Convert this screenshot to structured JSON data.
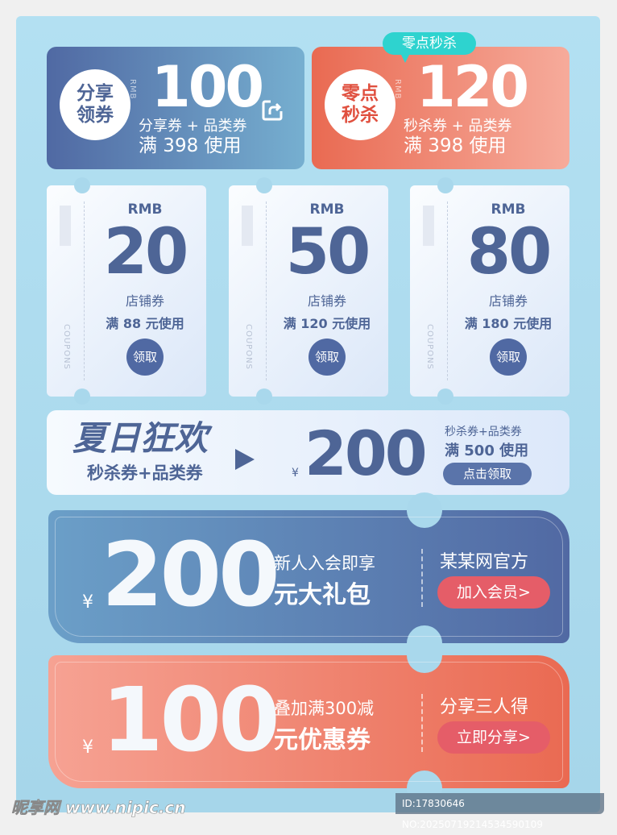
{
  "top_cards": [
    {
      "circle": "分享领券",
      "rmb": "RMB",
      "amount": "100",
      "line1": "分享券 + 品类券",
      "line2": "满 398 使用",
      "icon": "share-icon"
    },
    {
      "circle": "零点秒杀",
      "rmb": "RMB",
      "amount": "120",
      "line1": "秒杀券 + 品类券",
      "line2": "满 398 使用",
      "badge": "零点秒杀"
    }
  ],
  "tickets": [
    {
      "rmb": "RMB",
      "amount": "20",
      "name": "店铺券",
      "condition": "满 88 元使用",
      "button": "领取",
      "side": "COUPONS"
    },
    {
      "rmb": "RMB",
      "amount": "50",
      "name": "店铺券",
      "condition": "满 120 元使用",
      "button": "领取",
      "side": "COUPONS"
    },
    {
      "rmb": "RMB",
      "amount": "80",
      "name": "店铺券",
      "condition": "满 180 元使用",
      "button": "领取",
      "side": "COUPONS"
    }
  ],
  "banner": {
    "title": "夏日狂欢",
    "subtitle": "秒杀券+品类券",
    "currency": "¥",
    "amount": "200",
    "line1": "秒杀券+品类券",
    "line2": "满 500 使用",
    "button": "点击领取"
  },
  "coupons": [
    {
      "currency": "¥",
      "amount": "200",
      "line1": "新人入会即享",
      "line2": "元大礼包",
      "right_title": "某某网官方",
      "button": "加入会员>"
    },
    {
      "currency": "¥",
      "amount": "100",
      "line1": "叠加满300减",
      "line2": "元优惠券",
      "right_title": "分享三人得",
      "button": "立即分享>"
    }
  ],
  "watermark": "昵享网 www.nipic.cn",
  "image_id": "ID:17830646 NO:20250719214534590109",
  "colors": {
    "blue": "#5069a3",
    "coral": "#ea6a52",
    "teal": "#2ed3cf",
    "background": "#a9d8ec"
  }
}
